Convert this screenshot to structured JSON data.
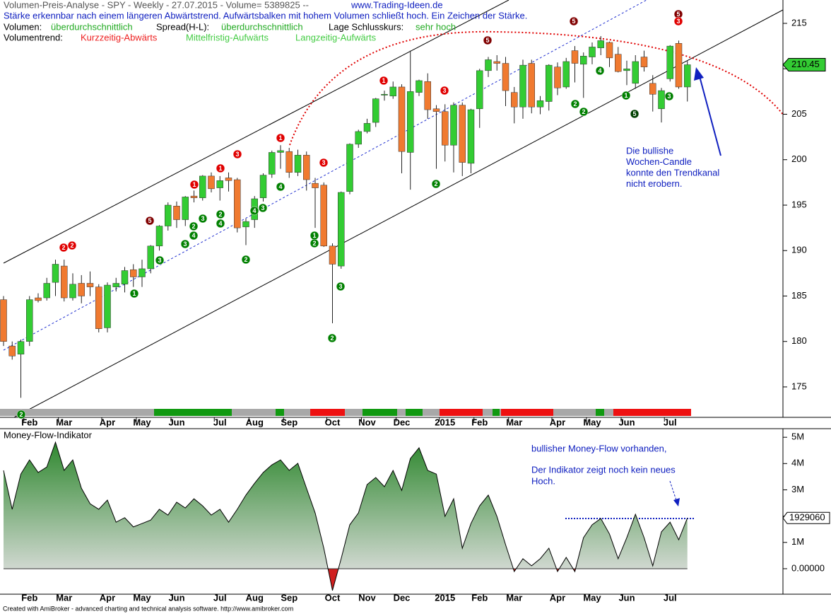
{
  "header": {
    "title": "Volumen-Preis-Analyse - SPY - Weekly  - 27.07.2015 - Volume= 5389825 --",
    "website": "www.Trading-Ideen.de",
    "message": "Stärke erkennbar nach einem längeren Abwärtstrend. Aufwärtsbalken mit hohem Volumen schließt hoch. Ein Zeichen der Stärke.",
    "volume_label": "Volumen:",
    "volume_value": "überdurchschnittlich",
    "spread_label": "Spread(H-L):",
    "spread_value": "überdurchschnittlich",
    "close_label": "Lage Schlusskurs:",
    "close_value": "sehr hoch",
    "trend_label": "Volumentrend:",
    "trend_short": "Kurzzeitig-Abwärts",
    "trend_mid": "Mittelfristig-Aufwärts",
    "trend_long": "Langzeitig-Aufwärts"
  },
  "chart_data": [
    {
      "type": "candlestick",
      "categories": [
        null,
        null,
        null,
        "Feb",
        null,
        null,
        null,
        "Mar",
        null,
        null,
        null,
        null,
        "Apr",
        null,
        null,
        null,
        "May",
        null,
        null,
        null,
        "Jun",
        null,
        null,
        null,
        null,
        "Jul",
        null,
        null,
        null,
        "Aug",
        null,
        null,
        null,
        "Sep",
        null,
        null,
        null,
        null,
        "Oct",
        null,
        null,
        null,
        "Nov",
        null,
        null,
        null,
        "Dec",
        null,
        null,
        null,
        null,
        "2015",
        null,
        null,
        null,
        "Feb",
        null,
        null,
        null,
        "Mar",
        null,
        null,
        null,
        null,
        "Apr",
        null,
        null,
        null,
        "May",
        null,
        null,
        null,
        "Jun",
        null,
        null,
        null,
        null,
        "Jul",
        null,
        null
      ],
      "open": [
        184.6,
        179.5,
        178.6,
        180,
        184.8,
        184.8,
        186.5,
        188.3,
        184.8,
        186.4,
        186.4,
        186,
        181.5,
        186,
        186.3,
        187.9,
        187.1,
        188,
        190.5,
        192.7,
        194.9,
        193.4,
        196,
        195.8,
        198.2,
        196.9,
        198,
        197.8,
        192.6,
        193.4,
        195.8,
        198.4,
        200.8,
        200.9,
        198.6,
        200.5,
        197.4,
        197.2,
        190.5,
        188.3,
        196.5,
        201.7,
        203.1,
        204.1,
        207.1,
        207,
        208,
        200.8,
        207.4,
        208.6,
        205.6,
        205.3,
        201.6,
        206,
        199.6,
        205.6,
        209.8,
        210.8,
        210.6,
        207.4,
        205.8,
        210.6,
        205.8,
        206.4,
        210.2,
        208,
        212,
        210.5,
        211.3,
        212.3,
        212.9,
        211.6,
        209.8,
        208.4,
        211.3,
        208.4,
        205.6,
        208.9,
        212.8,
        208
      ],
      "high": [
        185,
        180,
        180.2,
        185,
        185.3,
        187,
        189,
        189,
        187.5,
        187.3,
        187.7,
        186.3,
        186.5,
        187,
        188.2,
        188.5,
        189,
        190.6,
        192.8,
        195.3,
        195.4,
        196,
        196.6,
        198.3,
        198.6,
        198.2,
        198.6,
        198,
        193.5,
        196,
        198.5,
        201,
        201.6,
        201.3,
        201.1,
        200.9,
        198,
        197.5,
        190.8,
        196.5,
        201.8,
        203.3,
        204.5,
        206.8,
        207.6,
        208.6,
        208.3,
        212,
        208.8,
        209.5,
        206,
        206.1,
        206.3,
        206.3,
        205.6,
        210,
        211.3,
        211.5,
        211.3,
        208,
        211,
        211,
        207,
        210.5,
        210.7,
        211.2,
        212.5,
        211.8,
        212.9,
        213.6,
        213,
        212.4,
        210.9,
        211.5,
        212,
        209.3,
        207.9,
        212.6,
        213.1,
        210.9
      ],
      "low": [
        179.5,
        178,
        173.8,
        179.5,
        184.3,
        184.5,
        185,
        184.4,
        184.5,
        184.2,
        185,
        181,
        181,
        185.5,
        185.4,
        186,
        186,
        187.5,
        190,
        192.2,
        192.5,
        192.7,
        195.3,
        195.5,
        196.4,
        195.5,
        196.5,
        192,
        190.6,
        192.5,
        195.4,
        198,
        199,
        198,
        198.2,
        196.6,
        192.5,
        190.4,
        182,
        188,
        196.2,
        201.3,
        202.9,
        203.6,
        206.5,
        206.7,
        198.5,
        196.7,
        207,
        204.5,
        199,
        199.8,
        198.6,
        198.2,
        198.5,
        203.5,
        209.1,
        209.8,
        205.9,
        204,
        204.5,
        205.1,
        205,
        205.4,
        207.1,
        207.8,
        208.5,
        206.8,
        210.5,
        211.5,
        210.2,
        209.6,
        208.2,
        207.8,
        209.7,
        205.3,
        204.1,
        208.6,
        207.8,
        206.4
      ],
      "close": [
        180,
        178.4,
        180,
        184.6,
        184.5,
        186.4,
        188.5,
        184.8,
        186.3,
        185,
        186,
        181.4,
        186.2,
        186.4,
        187.8,
        187.1,
        188,
        190.5,
        192.7,
        195,
        193.4,
        195.9,
        195.8,
        198.2,
        196.8,
        197.7,
        197.7,
        192.5,
        193.2,
        195.7,
        198.3,
        200.8,
        201,
        198.6,
        200.5,
        197.8,
        196.9,
        190.5,
        188.5,
        196.4,
        201.7,
        203.1,
        204,
        206.7,
        207.2,
        208,
        200.9,
        207.5,
        208.7,
        205.5,
        205.3,
        201.6,
        206,
        199.7,
        205.5,
        209.8,
        211,
        210.6,
        207.6,
        205.8,
        210.4,
        205.8,
        206.5,
        210.4,
        207.9,
        210.8,
        210.6,
        211.4,
        212.4,
        213.1,
        211.2,
        209.7,
        210,
        210.8,
        210.2,
        207.2,
        207.6,
        212.5,
        208,
        210.45
      ],
      "up_color": "#33cc33",
      "down_color": "#f07a30",
      "ylim": [
        171.65,
        217.57
      ],
      "yticks": [
        175,
        180,
        185,
        190,
        195,
        200,
        205,
        210,
        215
      ],
      "signals": [
        {
          "x": 6.94,
          "y": 190.33,
          "label": "2",
          "color": "#e00000"
        },
        {
          "x": 7.92,
          "y": 190.56,
          "label": "2",
          "color": "#e00000"
        },
        {
          "x": 16.9,
          "y": 193.28,
          "label": "5",
          "color": "#800000"
        },
        {
          "x": 22.04,
          "y": 197.26,
          "label": "1",
          "color": "#e00000"
        },
        {
          "x": 25.06,
          "y": 199.05,
          "label": "1",
          "color": "#e00000"
        },
        {
          "x": 27.02,
          "y": 200.6,
          "label": "3",
          "color": "#e00000"
        },
        {
          "x": 32.0,
          "y": 202.39,
          "label": "1",
          "color": "#e00000"
        },
        {
          "x": 36.98,
          "y": 199.67,
          "label": "3",
          "color": "#e00000"
        },
        {
          "x": 43.92,
          "y": 208.7,
          "label": "1",
          "color": "#e00000"
        },
        {
          "x": 50.94,
          "y": 207.61,
          "label": "3",
          "color": "#e00000"
        },
        {
          "x": 55.92,
          "y": 213.13,
          "label": "5",
          "color": "#800000"
        },
        {
          "x": 65.88,
          "y": 215.23,
          "label": "5",
          "color": "#800000"
        },
        {
          "x": 77.96,
          "y": 216.01,
          "label": "5",
          "color": "#800000"
        },
        {
          "x": 77.96,
          "y": 215.23,
          "label": "3",
          "color": "#e00000"
        },
        {
          "x": 2.04,
          "y": 171.97,
          "label": "2",
          "color": "#008000"
        },
        {
          "x": 15.1,
          "y": 185.27,
          "label": "1",
          "color": "#008000"
        },
        {
          "x": 18.04,
          "y": 188.93,
          "label": "3",
          "color": "#008000"
        },
        {
          "x": 20.98,
          "y": 190.72,
          "label": "3",
          "color": "#008000"
        },
        {
          "x": 21.96,
          "y": 192.67,
          "label": "2",
          "color": "#008000"
        },
        {
          "x": 21.96,
          "y": 191.65,
          "label": "4",
          "color": "#008000"
        },
        {
          "x": 23.02,
          "y": 193.52,
          "label": "3",
          "color": "#008000"
        },
        {
          "x": 25.06,
          "y": 193.99,
          "label": "2",
          "color": "#008000"
        },
        {
          "x": 25.06,
          "y": 192.98,
          "label": "4",
          "color": "#008000"
        },
        {
          "x": 28.0,
          "y": 189.01,
          "label": "2",
          "color": "#008000"
        },
        {
          "x": 28.98,
          "y": 194.38,
          "label": "4",
          "color": "#008000"
        },
        {
          "x": 29.96,
          "y": 194.69,
          "label": "3",
          "color": "#008000"
        },
        {
          "x": 32.0,
          "y": 197.02,
          "label": "4",
          "color": "#008000"
        },
        {
          "x": 35.92,
          "y": 191.65,
          "label": "1",
          "color": "#008000"
        },
        {
          "x": 35.92,
          "y": 190.8,
          "label": "2",
          "color": "#008000"
        },
        {
          "x": 37.96,
          "y": 180.37,
          "label": "2",
          "color": "#008000"
        },
        {
          "x": 38.94,
          "y": 186.05,
          "label": "3",
          "color": "#008000"
        },
        {
          "x": 49.96,
          "y": 197.33,
          "label": "2",
          "color": "#008000"
        },
        {
          "x": 66.04,
          "y": 206.13,
          "label": "2",
          "color": "#008000"
        },
        {
          "x": 67.02,
          "y": 205.27,
          "label": "2",
          "color": "#008000"
        },
        {
          "x": 68.9,
          "y": 209.79,
          "label": "4",
          "color": "#008000"
        },
        {
          "x": 71.92,
          "y": 207.06,
          "label": "1",
          "color": "#008000"
        },
        {
          "x": 72.9,
          "y": 205.04,
          "label": "5",
          "color": "#004000"
        },
        {
          "x": 76.9,
          "y": 206.98,
          "label": "3",
          "color": "#008000"
        }
      ],
      "annotation": [
        "Die bullishe",
        "Wochen-Candle",
        "konnte den Trendkanal",
        "nicht erobern."
      ]
    },
    {
      "type": "area",
      "title": "Money-Flow-Indikator",
      "values": [
        3740000,
        2260000,
        3600000,
        4140000,
        3660000,
        3870000,
        4810000,
        3740000,
        4140000,
        3060000,
        2470000,
        2260000,
        2610000,
        1770000,
        1940000,
        1590000,
        1720000,
        1850000,
        2260000,
        2040000,
        2530000,
        2310000,
        2660000,
        2390000,
        2040000,
        2260000,
        1770000,
        2260000,
        2800000,
        3250000,
        3660000,
        3950000,
        4140000,
        3740000,
        4010000,
        3060000,
        2120000,
        780000,
        -830000,
        380000,
        1670000,
        2120000,
        3200000,
        3470000,
        3120000,
        3740000,
        2980000,
        4190000,
        4600000,
        3740000,
        3600000,
        1990000,
        2660000,
        780000,
        1720000,
        2390000,
        2800000,
        1990000,
        910000,
        -110000,
        380000,
        110000,
        380000,
        780000,
        -110000,
        430000,
        -110000,
        1180000,
        1670000,
        1910000,
        1320000,
        380000,
        1180000,
        2070000,
        1180000,
        110000,
        1400000,
        1770000,
        1100000,
        1929060
      ],
      "color": "#1f801f",
      "negative_color": "#d02020",
      "ylim": [
        -970000,
        5300000
      ],
      "yticks": [
        {
          "value": 0,
          "label": "0.00000"
        },
        {
          "value": 1000000,
          "label": "1M"
        },
        {
          "value": 2000000,
          "label": "2M"
        },
        {
          "value": 3000000,
          "label": "3M"
        },
        {
          "value": 4000000,
          "label": "4M"
        },
        {
          "value": 5000000,
          "label": "5M"
        }
      ],
      "annotations": [
        "bullisher Money-Flow vorhanden,",
        "Der Indikator zeigt noch kein neues",
        "Hoch."
      ]
    }
  ],
  "footer": "Created with AmiBroker - advanced charting and technical analysis software. http://www.amibroker.com"
}
